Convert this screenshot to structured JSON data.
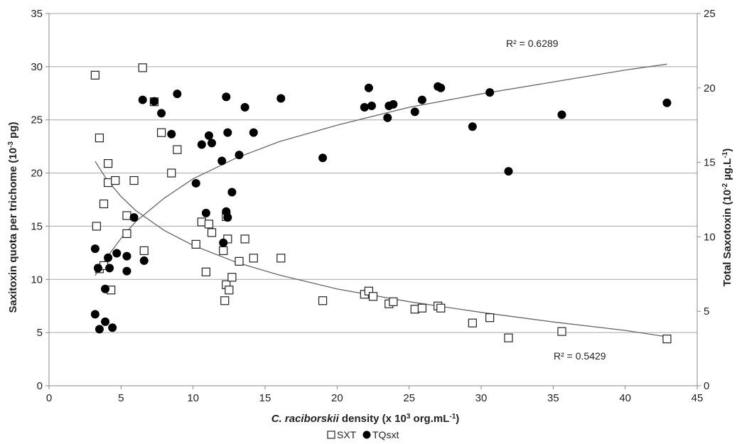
{
  "chart_data": {
    "type": "scatter",
    "xlabel_italic": "C. raciborskii",
    "xlabel_rest": " density (x 10",
    "xlabel_sup": "3",
    "xlabel_end": " org.mL",
    "xlabel_sup2": "-1",
    "xlabel_close": ")",
    "ylabel": "Saxitoxin quota per trichome  (10",
    "ylabel_sup": "-3",
    "ylabel_end": " pg)",
    "y2label": "Total Saxotoxin  (10",
    "y2label_sup": "-2",
    "y2label_mid": " µg.L",
    "y2label_sup2": "-1",
    "y2label_end": ")",
    "xlim": [
      0,
      45
    ],
    "ylim": [
      0,
      35
    ],
    "y2lim": [
      0,
      25
    ],
    "xticks": [
      0,
      5,
      10,
      15,
      20,
      25,
      30,
      35,
      40,
      45
    ],
    "yticks": [
      0,
      5,
      10,
      15,
      20,
      25,
      30,
      35
    ],
    "y2ticks": [
      0,
      5,
      10,
      15,
      20,
      25
    ],
    "grid": "horizontal",
    "legend_position": "bottom-center",
    "series": [
      {
        "name": "SXT",
        "marker": "open-square",
        "axis": "left",
        "points": [
          [
            3.2,
            29.2
          ],
          [
            3.3,
            15.0
          ],
          [
            3.5,
            23.3
          ],
          [
            3.5,
            11.0
          ],
          [
            3.8,
            17.1
          ],
          [
            3.8,
            11.3
          ],
          [
            4.1,
            20.9
          ],
          [
            4.1,
            19.1
          ],
          [
            4.3,
            9.0
          ],
          [
            4.6,
            19.3
          ],
          [
            5.4,
            16.0
          ],
          [
            5.4,
            14.3
          ],
          [
            5.9,
            19.3
          ],
          [
            6.5,
            29.9
          ],
          [
            6.6,
            12.7
          ],
          [
            7.3,
            26.7
          ],
          [
            7.8,
            23.8
          ],
          [
            8.5,
            20.0
          ],
          [
            8.9,
            22.2
          ],
          [
            10.2,
            13.3
          ],
          [
            10.6,
            15.4
          ],
          [
            10.9,
            10.7
          ],
          [
            11.1,
            15.2
          ],
          [
            11.3,
            14.4
          ],
          [
            12.1,
            12.7
          ],
          [
            12.3,
            15.9
          ],
          [
            12.4,
            13.8
          ],
          [
            12.2,
            8.0
          ],
          [
            12.3,
            9.5
          ],
          [
            12.5,
            9.0
          ],
          [
            12.7,
            10.2
          ],
          [
            13.2,
            11.7
          ],
          [
            13.6,
            13.8
          ],
          [
            14.2,
            12.0
          ],
          [
            16.1,
            12.0
          ],
          [
            19.0,
            8.0
          ],
          [
            21.9,
            8.6
          ],
          [
            22.2,
            8.9
          ],
          [
            22.5,
            8.4
          ],
          [
            23.6,
            7.7
          ],
          [
            23.9,
            7.9
          ],
          [
            25.4,
            7.2
          ],
          [
            25.9,
            7.3
          ],
          [
            27.0,
            7.5
          ],
          [
            27.2,
            7.3
          ],
          [
            29.4,
            5.9
          ],
          [
            30.6,
            6.4
          ],
          [
            31.9,
            4.5
          ],
          [
            35.6,
            5.1
          ],
          [
            42.9,
            4.4
          ]
        ],
        "trend": {
          "r2_label": "R² = 0.5429",
          "curve": [
            [
              3.2,
              21.1
            ],
            [
              4,
              19.4
            ],
            [
              5,
              17.8
            ],
            [
              6,
              16.5
            ],
            [
              8,
              14.6
            ],
            [
              10,
              13.2
            ],
            [
              13,
              11.6
            ],
            [
              16,
              10.4
            ],
            [
              20,
              9.1
            ],
            [
              25,
              7.9
            ],
            [
              30,
              6.9
            ],
            [
              35,
              6.0
            ],
            [
              40,
              5.2
            ],
            [
              42.9,
              4.6
            ]
          ]
        }
      },
      {
        "name": "TQsxt",
        "marker": "filled-circle",
        "axis": "right",
        "points": [
          [
            3.2,
            9.2
          ],
          [
            3.2,
            4.8
          ],
          [
            3.4,
            7.9
          ],
          [
            3.5,
            3.8
          ],
          [
            3.9,
            6.5
          ],
          [
            3.9,
            4.3
          ],
          [
            4.1,
            8.6
          ],
          [
            4.2,
            7.9
          ],
          [
            4.4,
            3.9
          ],
          [
            4.7,
            8.9
          ],
          [
            5.4,
            8.7
          ],
          [
            5.4,
            7.7
          ],
          [
            5.9,
            11.3
          ],
          [
            6.5,
            19.2
          ],
          [
            6.6,
            8.4
          ],
          [
            7.3,
            19.1
          ],
          [
            7.8,
            18.3
          ],
          [
            8.5,
            16.9
          ],
          [
            8.9,
            19.6
          ],
          [
            10.2,
            13.6
          ],
          [
            10.6,
            16.2
          ],
          [
            10.9,
            11.6
          ],
          [
            11.1,
            16.8
          ],
          [
            11.3,
            16.3
          ],
          [
            12.0,
            15.1
          ],
          [
            12.1,
            9.6
          ],
          [
            12.3,
            19.4
          ],
          [
            12.3,
            11.7
          ],
          [
            12.4,
            11.3
          ],
          [
            12.4,
            17.0
          ],
          [
            12.7,
            13.0
          ],
          [
            13.2,
            15.5
          ],
          [
            13.6,
            18.7
          ],
          [
            14.2,
            17.0
          ],
          [
            16.1,
            19.3
          ],
          [
            19.0,
            15.3
          ],
          [
            21.9,
            18.7
          ],
          [
            22.2,
            20.0
          ],
          [
            22.4,
            18.8
          ],
          [
            23.5,
            18.0
          ],
          [
            23.6,
            18.8
          ],
          [
            23.9,
            18.9
          ],
          [
            25.4,
            18.4
          ],
          [
            25.9,
            19.2
          ],
          [
            27.0,
            20.1
          ],
          [
            27.2,
            20.0
          ],
          [
            29.4,
            17.4
          ],
          [
            30.6,
            19.7
          ],
          [
            31.9,
            14.4
          ],
          [
            35.6,
            18.2
          ],
          [
            42.9,
            19.0
          ]
        ],
        "trend": {
          "r2_label": "R² = 0.6289",
          "curve": [
            [
              3.2,
              7.4
            ],
            [
              4,
              8.6
            ],
            [
              5,
              9.9
            ],
            [
              6,
              11.0
            ],
            [
              8,
              12.6
            ],
            [
              10,
              13.9
            ],
            [
              13,
              15.3
            ],
            [
              16,
              16.4
            ],
            [
              20,
              17.5
            ],
            [
              25,
              18.7
            ],
            [
              30,
              19.6
            ],
            [
              35,
              20.4
            ],
            [
              40,
              21.2
            ],
            [
              42.9,
              21.6
            ]
          ]
        }
      }
    ]
  }
}
